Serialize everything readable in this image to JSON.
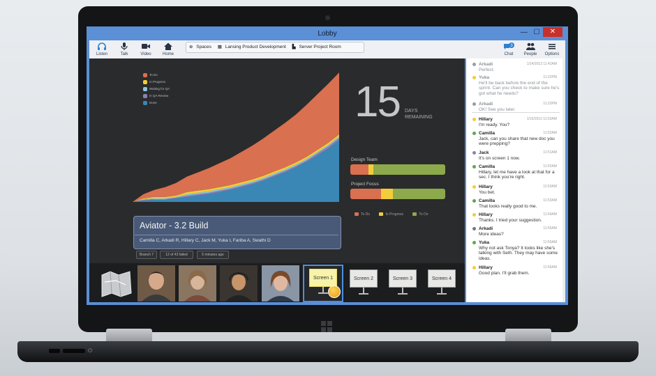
{
  "window": {
    "title": "Lobby",
    "minimize_glyph": "—",
    "maximize_glyph": "☐",
    "close_glyph": "✕"
  },
  "toolbar": {
    "left_tools": [
      {
        "label": "Listen",
        "icon": "headphones-icon"
      },
      {
        "label": "Talk",
        "icon": "microphone-icon"
      },
      {
        "label": "Video",
        "icon": "video-camera-icon"
      },
      {
        "label": "Home",
        "icon": "home-icon"
      }
    ],
    "breadcrumbs": [
      "Spaces",
      "Lansing Product Development",
      "Server Project Room"
    ],
    "right_tools": [
      {
        "label": "Chat",
        "icon": "chat-icon",
        "badge": "3"
      },
      {
        "label": "People",
        "icon": "people-icon"
      },
      {
        "label": "Options",
        "icon": "menu-icon"
      }
    ]
  },
  "stage": {
    "legend": [
      {
        "label": "To Do",
        "color": "#d9704f"
      },
      {
        "label": "In Progress",
        "color": "#f2cd3a"
      },
      {
        "label": "Waiting for QA",
        "color": "#8cc7dc"
      },
      {
        "label": "In QA Review",
        "color": "#8d7fb5"
      },
      {
        "label": "Done",
        "color": "#3a87b6"
      }
    ],
    "days_count": "15",
    "days_label_1": "DAYS",
    "days_label_2": "REMAINING",
    "bars": [
      {
        "label": "Design Team",
        "segments": [
          {
            "status": "To Do",
            "fraction": 0.19,
            "color": "#d9704f"
          },
          {
            "status": "In Progress",
            "fraction": 0.05,
            "color": "#f2cd3a"
          },
          {
            "status": "Done",
            "fraction": 0.76,
            "color": "#8ca94b"
          }
        ]
      },
      {
        "label": "Project Focus",
        "segments": [
          {
            "status": "To Do",
            "fraction": 0.32,
            "color": "#d9704f"
          },
          {
            "status": "In Progress",
            "fraction": 0.13,
            "color": "#f2cd3a"
          },
          {
            "status": "Done",
            "fraction": 0.55,
            "color": "#8ca94b"
          }
        ]
      }
    ],
    "status_legend": [
      {
        "label": "To Do",
        "color": "#d9704f"
      },
      {
        "label": "In Progress",
        "color": "#f2cd3a"
      },
      {
        "label": "To Do",
        "color": "#8ca94b"
      }
    ],
    "build_title": "Aviator - 3.2 Build",
    "build_members": "Camilla C, Arkadi R, Hillary C, Jack M, Yuka I, Fariba A, Swathi D",
    "tags": [
      "Branch 7",
      "12 of 43 failed",
      "5 minutes ago"
    ]
  },
  "filmstrip": {
    "screens": [
      "Screen 1",
      "Screen 2",
      "Screen 3",
      "Screen 4"
    ],
    "participants": [
      "participant-1",
      "participant-2",
      "participant-3",
      "participant-4"
    ]
  },
  "chat": {
    "messages": [
      {
        "name": "Arkadi",
        "time": "1/14/2013 11:42AM",
        "text": "Perfect.",
        "color": "#9a9ea3",
        "faded": true
      },
      {
        "name": "Yuka",
        "time": "11:22PM",
        "text": "He'll be back before the end of the sprint. Can you check to make sure he's got what he needs?",
        "color": "#f2cd3a",
        "faded": true
      },
      {
        "name": "Arkadi",
        "time": "11:23PM",
        "text": "OK! See you later.",
        "color": "#9a9ea3",
        "faded": true
      },
      {
        "name": "Hillary",
        "time": "1/15/2013 11:53AM",
        "text": "I'm ready. You?",
        "color": "#f2cd3a",
        "faded": false
      },
      {
        "name": "Camilla",
        "time": "11:52AM",
        "text": "Jack, can you share that new doc you were prepping?",
        "color": "#5ba84f",
        "faded": false
      },
      {
        "name": "Jack",
        "time": "11:51AM",
        "text": "It's on screen 1 now.",
        "color": "#8a7fc0",
        "faded": false
      },
      {
        "name": "Camilla",
        "time": "11:52AM",
        "text": "Hillary, let me have a look at that for a sec. I think you're right.",
        "color": "#5ba84f",
        "faded": false
      },
      {
        "name": "Hillary",
        "time": "11:53AM",
        "text": "You bet.",
        "color": "#f2cd3a",
        "faded": false
      },
      {
        "name": "Camilla",
        "time": "11:53AM",
        "text": "That looks really good to me.",
        "color": "#5ba84f",
        "faded": false
      },
      {
        "name": "Hillary",
        "time": "11:54AM",
        "text": "Thanks. I tried your suggestion.",
        "color": "#f2cd3a",
        "faded": false
      },
      {
        "name": "Arkadi",
        "time": "11:55AM",
        "text": "More ideas?",
        "color": "#6b7a8a",
        "faded": false
      },
      {
        "name": "Yuka",
        "time": "11:55AM",
        "text": "Why not ask Tonya? It looks like she's talking with Seth. They may have some ideas.",
        "color": "#5ba84f",
        "faded": false
      },
      {
        "name": "Hillary",
        "time": "11:56AM",
        "text": "Good plan. I'll grab them.",
        "color": "#f2cd3a",
        "faded": false
      }
    ]
  },
  "chart_data": {
    "type": "area",
    "stacked": true,
    "x": [
      0,
      1,
      2,
      3,
      4,
      5,
      6,
      7,
      8,
      9,
      10,
      11,
      12,
      13,
      14,
      15,
      16,
      17,
      18,
      19
    ],
    "series": [
      {
        "name": "Done",
        "color": "#3a87b6",
        "values": [
          0,
          2,
          3,
          3,
          5,
          7,
          9,
          11,
          14,
          17,
          21,
          25,
          30,
          36,
          42,
          49,
          57,
          66,
          76,
          88
        ]
      },
      {
        "name": "In QA Review",
        "color": "#8d7fb5",
        "values": [
          0,
          1,
          1,
          1,
          1,
          2,
          2,
          2,
          2,
          2,
          2,
          2,
          2,
          2,
          2,
          2,
          2,
          3,
          3,
          3
        ]
      },
      {
        "name": "Waiting for QA",
        "color": "#8cc7dc",
        "values": [
          0,
          1,
          1,
          1,
          1,
          2,
          2,
          2,
          2,
          2,
          2,
          2,
          2,
          2,
          2,
          2,
          2,
          2,
          2,
          2
        ]
      },
      {
        "name": "In Progress",
        "color": "#f2cd3a",
        "values": [
          0,
          1,
          2,
          2,
          2,
          3,
          3,
          3,
          3,
          3,
          3,
          3,
          3,
          3,
          3,
          3,
          3,
          3,
          3,
          3
        ]
      },
      {
        "name": "To Do",
        "color": "#d9704f",
        "values": [
          0,
          6,
          10,
          14,
          18,
          22,
          26,
          30,
          34,
          38,
          43,
          48,
          53,
          58,
          63,
          68,
          74,
          79,
          84,
          88
        ]
      }
    ],
    "ylim": [
      0,
      190
    ]
  }
}
